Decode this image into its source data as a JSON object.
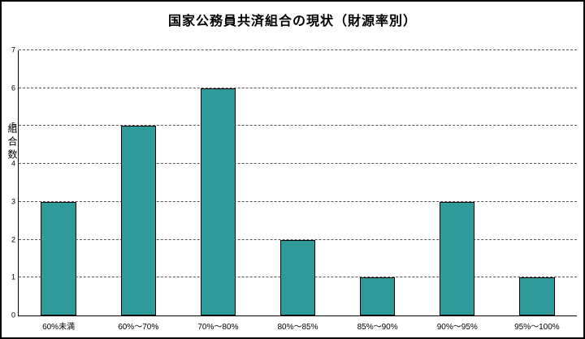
{
  "chart_data": {
    "type": "bar",
    "title": "国家公務員共済組合の現状（財源率別）",
    "ylabel": "組合数",
    "xlabel": "",
    "categories": [
      "60%未満",
      "60%～70%",
      "70%～80%",
      "80%～85%",
      "85%～90%",
      "90%～95%",
      "95%～100%"
    ],
    "values": [
      3,
      5,
      6,
      2,
      1,
      3,
      1
    ],
    "ylim": [
      0,
      7
    ],
    "yticks": [
      0,
      1,
      2,
      3,
      4,
      5,
      6,
      7
    ],
    "grid": "horizontal-dashed",
    "legend": "none",
    "bar_color": "#2E9A9A",
    "bar_border_color": "#000000"
  }
}
